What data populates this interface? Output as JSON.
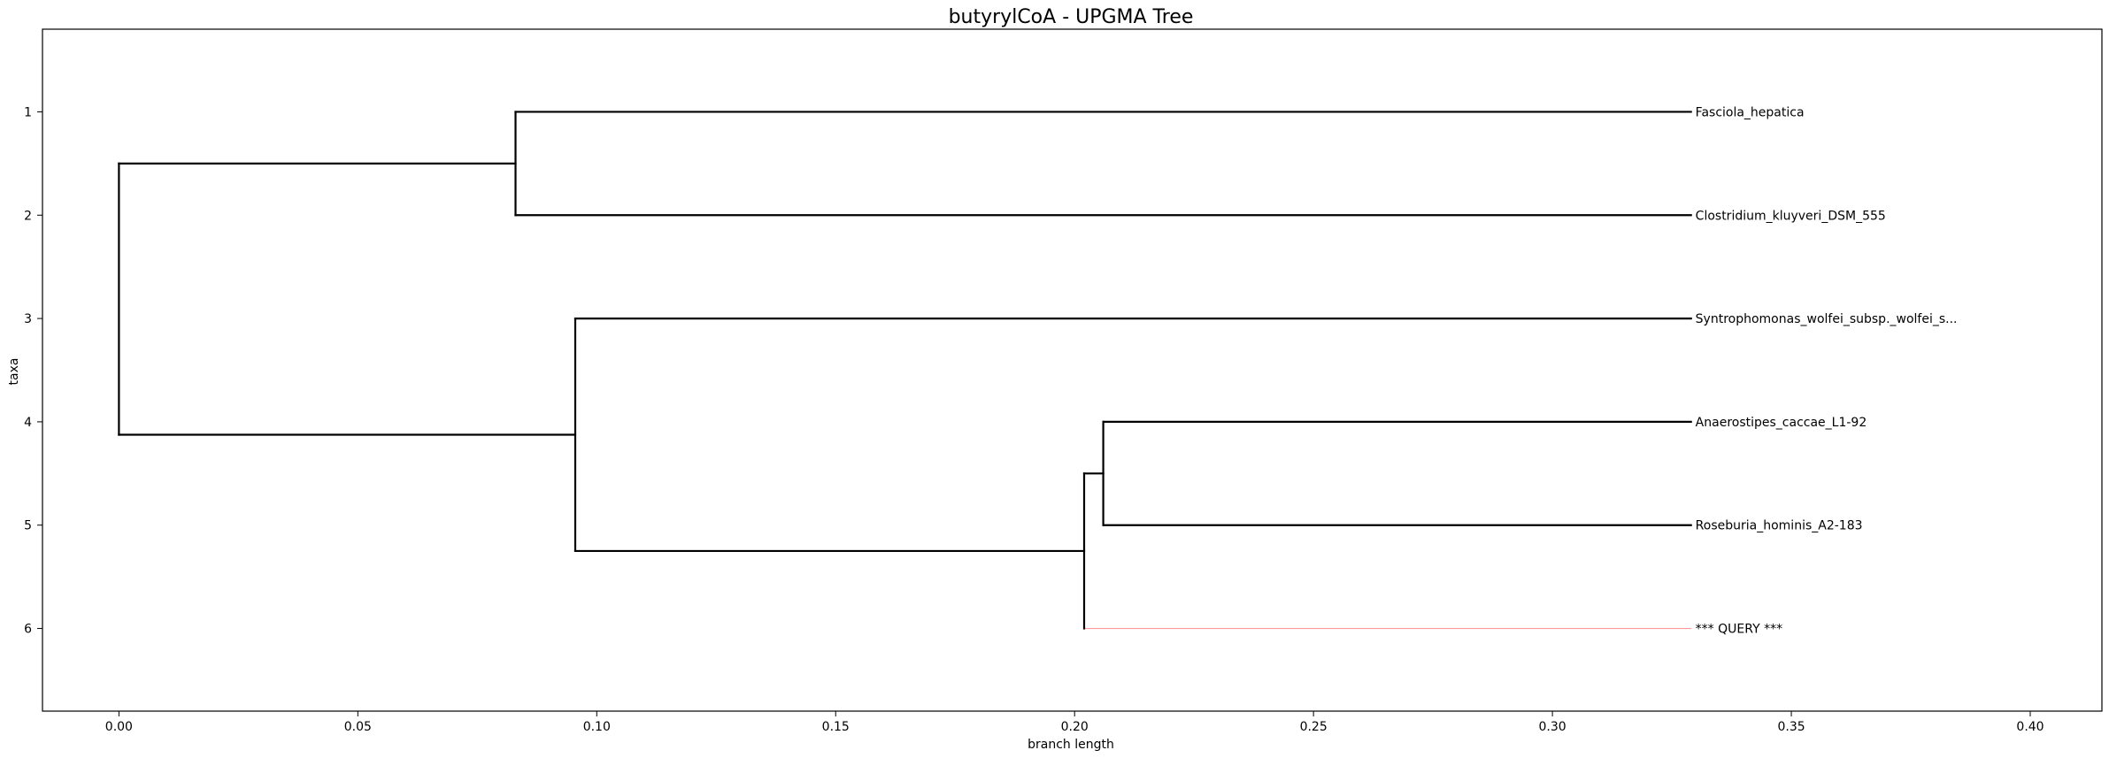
{
  "title": "butyrylCoA - UPGMA Tree",
  "chart_data": {
    "type": "dendrogram",
    "title": "butyrylCoA - UPGMA Tree",
    "xlabel": "branch length",
    "ylabel": "taxa",
    "xlim": [
      -0.016,
      0.415
    ],
    "ylim": [
      6.8,
      0.2
    ],
    "x_ticks": [
      "0.00",
      "0.05",
      "0.10",
      "0.15",
      "0.20",
      "0.25",
      "0.30",
      "0.35",
      "0.40"
    ],
    "x_tick_values": [
      0,
      0.05,
      0.1,
      0.15,
      0.2,
      0.25,
      0.3,
      0.35,
      0.4
    ],
    "y_ticks": [
      "1",
      "2",
      "3",
      "4",
      "5",
      "6"
    ],
    "y_tick_values": [
      1,
      2,
      3,
      4,
      5,
      6
    ],
    "leaves": [
      {
        "label": "Fasciola_hepatica",
        "x": 0.329,
        "y": 1
      },
      {
        "label": "Clostridium_kluyveri_DSM_555",
        "x": 0.329,
        "y": 2
      },
      {
        "label": "Syntrophomonas_wolfei_subsp._wolfei_s...",
        "x": 0.329,
        "y": 3
      },
      {
        "label": "Anaerostipes_caccae_L1-92",
        "x": 0.329,
        "y": 4
      },
      {
        "label": "Roseburia_hominis_A2-183",
        "x": 0.329,
        "y": 5
      },
      {
        "label": "*** QUERY ***",
        "x": 0.329,
        "y": 6
      }
    ],
    "nodes": [
      {
        "id": "root",
        "x": 0.0,
        "y": 4.125
      },
      {
        "id": "n1",
        "x": 0.083,
        "y": 1.5
      },
      {
        "id": "n2",
        "x": 0.0955,
        "y": 4.25
      },
      {
        "id": "n3",
        "x": 0.202,
        "y": 5.25
      },
      {
        "id": "n4",
        "x": 0.206,
        "y": 4.5
      }
    ],
    "branches": [
      {
        "x1": 0.0,
        "y1": 1.5,
        "x2": 0.083,
        "y2": 1.5,
        "color": "#000000"
      },
      {
        "x1": 0.0,
        "y1": 4.125,
        "x2": 0.0955,
        "y2": 4.125,
        "color": "#000000"
      },
      {
        "x1": 0.083,
        "y1": 1,
        "x2": 0.329,
        "y2": 1,
        "color": "#000000"
      },
      {
        "x1": 0.083,
        "y1": 2,
        "x2": 0.329,
        "y2": 2,
        "color": "#000000"
      },
      {
        "x1": 0.0955,
        "y1": 3,
        "x2": 0.329,
        "y2": 3,
        "color": "#000000"
      },
      {
        "x1": 0.0955,
        "y1": 5.25,
        "x2": 0.202,
        "y2": 5.25,
        "color": "#000000"
      },
      {
        "x1": 0.202,
        "y1": 4.5,
        "x2": 0.206,
        "y2": 4.5,
        "color": "#000000"
      },
      {
        "x1": 0.206,
        "y1": 4,
        "x2": 0.329,
        "y2": 4,
        "color": "#000000"
      },
      {
        "x1": 0.206,
        "y1": 5,
        "x2": 0.329,
        "y2": 5,
        "color": "#000000"
      },
      {
        "x1": 0.202,
        "y1": 6,
        "x2": 0.329,
        "y2": 6,
        "color": "#ff9999"
      },
      {
        "x1": 0.0,
        "y1": 1.5,
        "x2": 0.0,
        "y2": 4.125,
        "color": "#000000"
      },
      {
        "x1": 0.083,
        "y1": 1,
        "x2": 0.083,
        "y2": 2,
        "color": "#000000"
      },
      {
        "x1": 0.0955,
        "y1": 3,
        "x2": 0.0955,
        "y2": 5.25,
        "color": "#000000"
      },
      {
        "x1": 0.202,
        "y1": 4.5,
        "x2": 0.202,
        "y2": 6,
        "color": "#000000"
      },
      {
        "x1": 0.206,
        "y1": 4,
        "x2": 0.206,
        "y2": 5,
        "color": "#000000"
      }
    ]
  }
}
